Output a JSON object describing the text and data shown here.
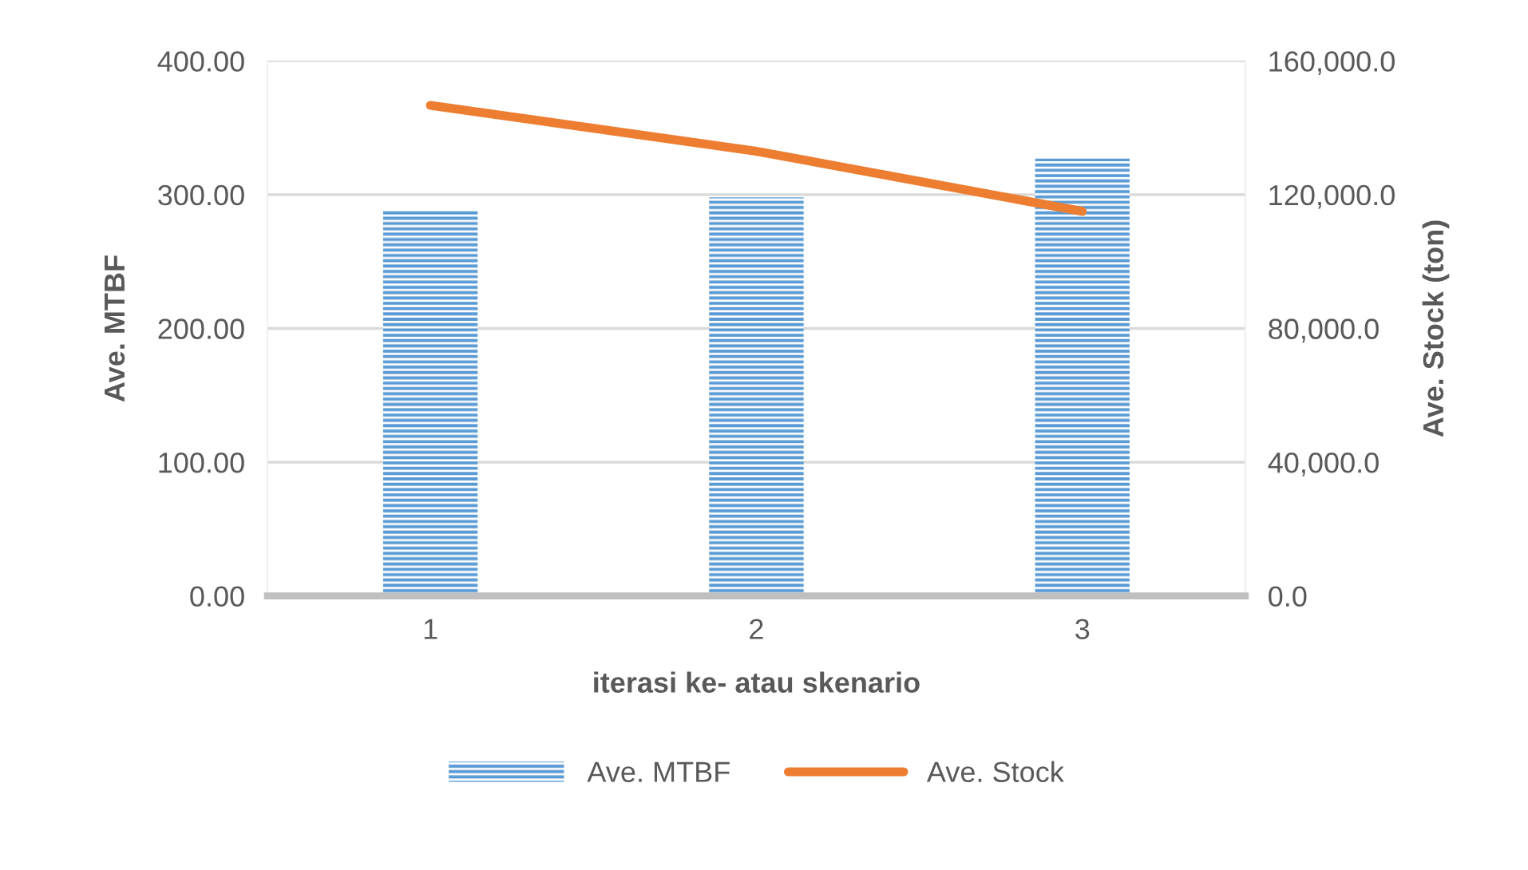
{
  "chart_data": {
    "type": "bar",
    "categories": [
      "1",
      "2",
      "3"
    ],
    "xlabel": "iterasi ke- atau skenario",
    "ylabel": "Ave. MTBF",
    "y2label": "Ave. Stock (ton)",
    "series": [
      {
        "name": "Ave. MTBF",
        "color": "#5b9bd5",
        "values": [
          288,
          298,
          327
        ]
      },
      {
        "name": "Ave. Stock",
        "type": "line",
        "axis": "y2",
        "color": "#ed7d31",
        "values": [
          146700,
          133000,
          115000
        ]
      }
    ],
    "ylim": [
      0,
      400
    ],
    "yticks": [
      {
        "value": 0,
        "label": "0.00"
      },
      {
        "value": 100,
        "label": "100.00"
      },
      {
        "value": 200,
        "label": "200.00"
      },
      {
        "value": 300,
        "label": "300.00"
      },
      {
        "value": 400,
        "label": "400.00"
      }
    ],
    "y2lim": [
      0,
      160000
    ],
    "y2ticks": [
      {
        "value": 0,
        "label": "0.0"
      },
      {
        "value": 40000,
        "label": "40,000.0"
      },
      {
        "value": 80000,
        "label": "80,000.0"
      },
      {
        "value": 120000,
        "label": "120,000.0"
      },
      {
        "value": 160000,
        "label": "160,000.0"
      }
    ],
    "grid": "y",
    "legend": "bottom",
    "marker": "none",
    "line_style": "solid"
  }
}
